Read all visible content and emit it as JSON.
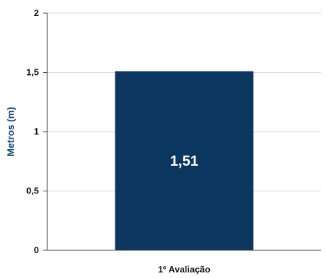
{
  "colors": {
    "bar": "#0b3660",
    "axis_title": "#1f4f7a",
    "tick_text": "#111111",
    "grid": "#d9d9d9",
    "axis": "#444444",
    "bar_label": "#ffffff"
  },
  "chart_data": {
    "type": "bar",
    "categories": [
      "1º Avaliação"
    ],
    "values": [
      1.51
    ],
    "data_labels": [
      "1,51"
    ],
    "title": "",
    "xlabel": "",
    "ylabel": "Metros (m)",
    "ylim": [
      0,
      2
    ],
    "yticks": [
      0,
      0.5,
      1,
      1.5,
      2
    ],
    "ytick_labels": [
      "0",
      "0,5",
      "1",
      "1,5",
      "2"
    ],
    "grid": true,
    "legend": "none"
  }
}
